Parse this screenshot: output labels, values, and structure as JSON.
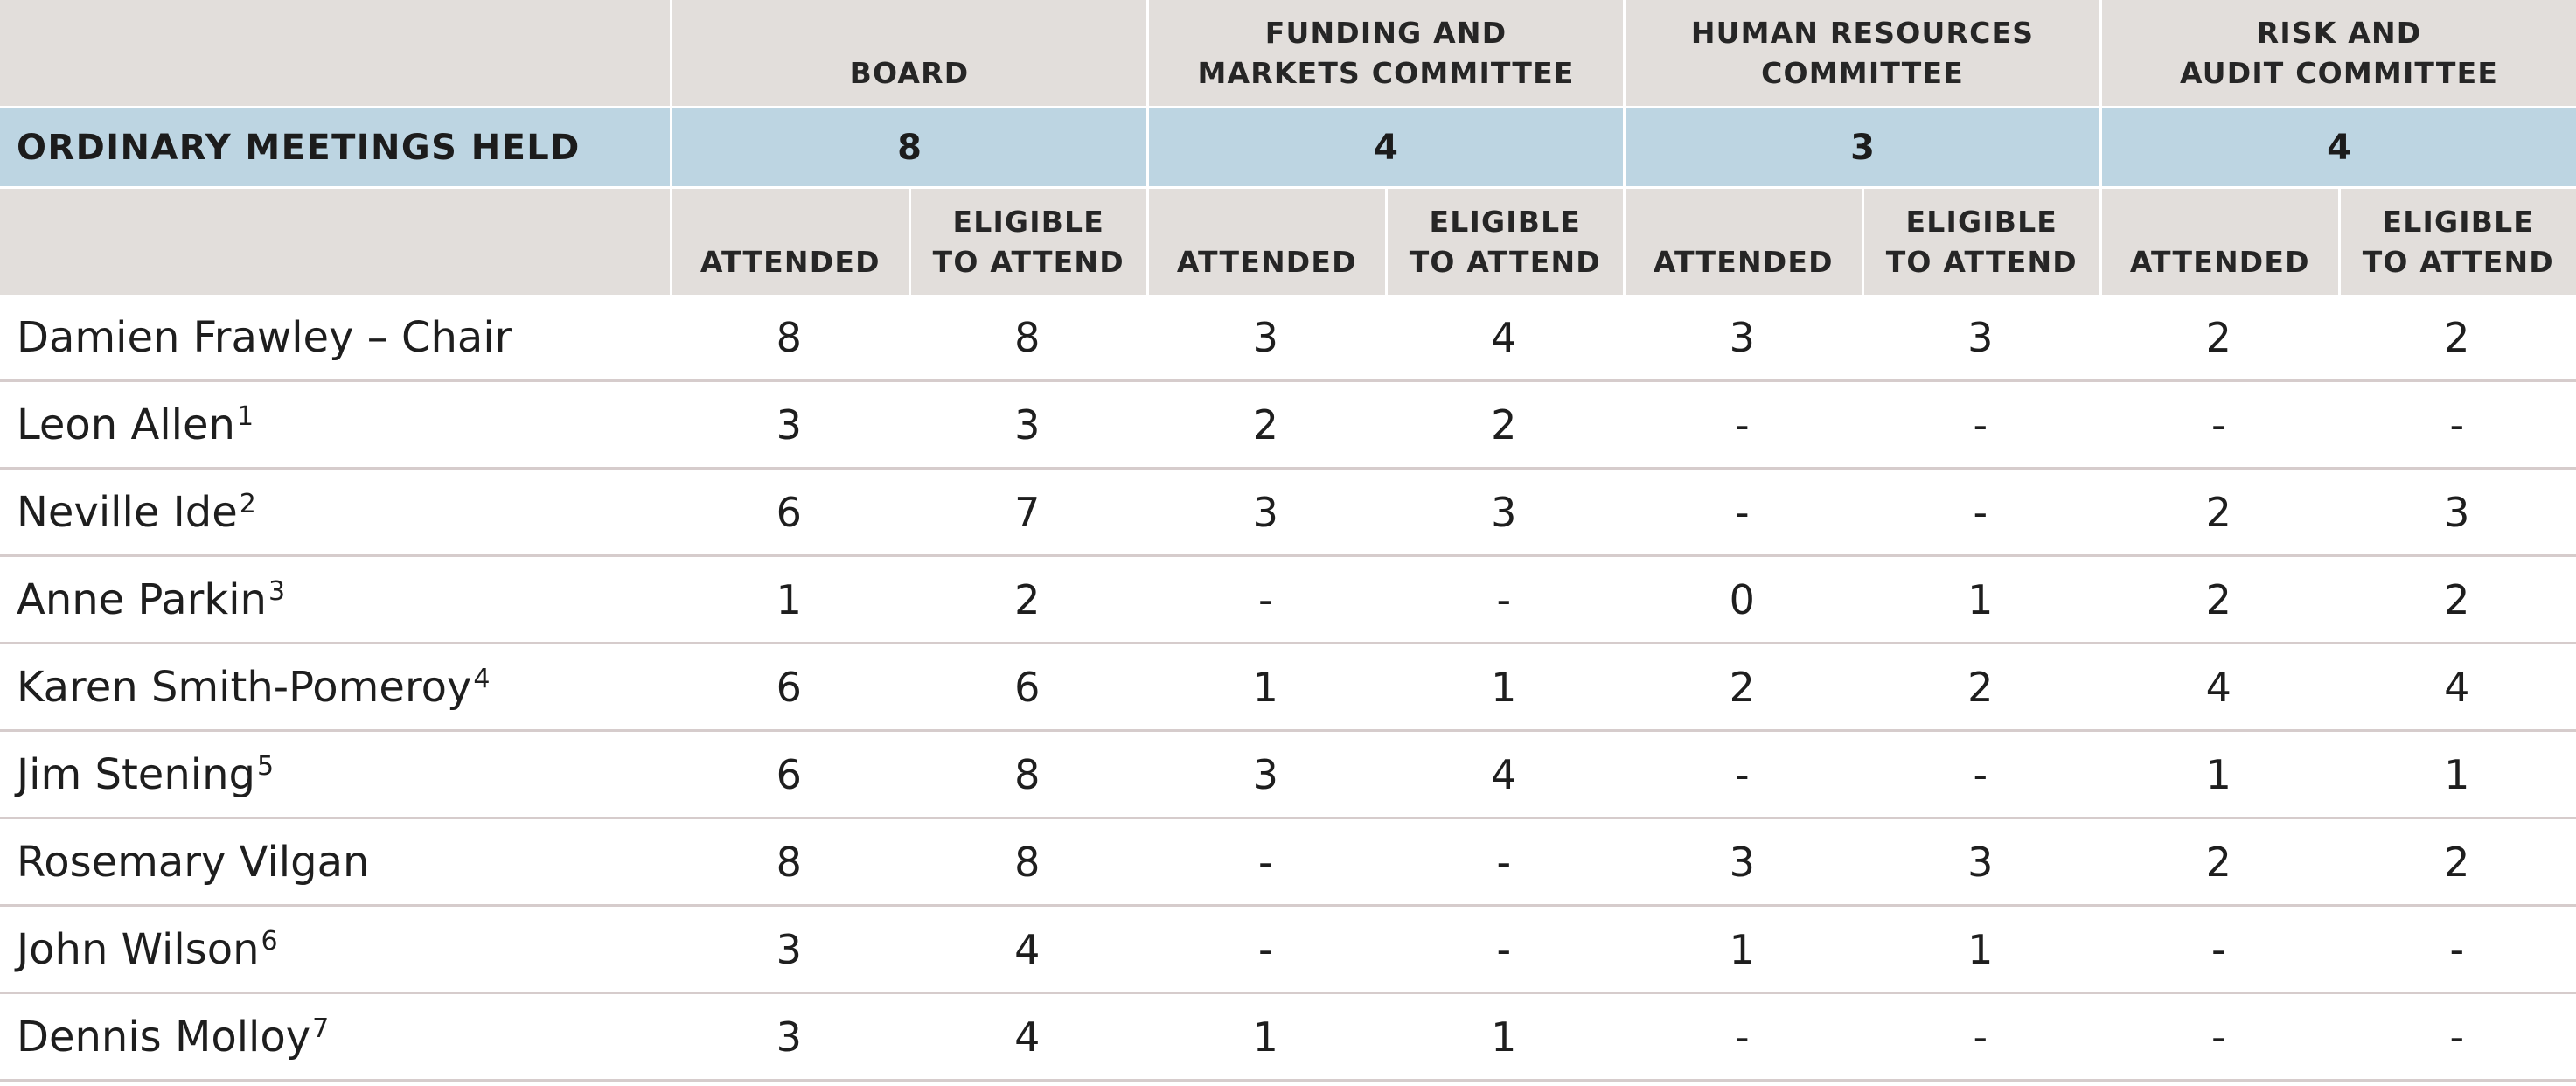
{
  "committees": [
    {
      "lines": [
        "",
        "BOARD"
      ],
      "meetings_held": "8"
    },
    {
      "lines": [
        "FUNDING AND",
        "MARKETS COMMITTEE"
      ],
      "meetings_held": "4"
    },
    {
      "lines": [
        "HUMAN RESOURCES",
        "COMMITTEE"
      ],
      "meetings_held": "3"
    },
    {
      "lines": [
        "RISK AND",
        "AUDIT COMMITTEE"
      ],
      "meetings_held": "4"
    }
  ],
  "meetings_label": "ORDINARY MEETINGS HELD",
  "sub_headers": {
    "attended": "ATTENDED",
    "eligible_line1": "ELIGIBLE",
    "eligible_line2": "TO ATTEND"
  },
  "rows": [
    {
      "name": "Damien Frawley – Chair",
      "footnote": "",
      "values": [
        "8",
        "8",
        "3",
        "4",
        "3",
        "3",
        "2",
        "2"
      ]
    },
    {
      "name": "Leon Allen",
      "footnote": "1",
      "values": [
        "3",
        "3",
        "2",
        "2",
        "-",
        "-",
        "-",
        "-"
      ]
    },
    {
      "name": "Neville Ide",
      "footnote": "2",
      "values": [
        "6",
        "7",
        "3",
        "3",
        "-",
        "-",
        "2",
        "3"
      ]
    },
    {
      "name": "Anne Parkin",
      "footnote": "3",
      "values": [
        "1",
        "2",
        "-",
        "-",
        "0",
        "1",
        "2",
        "2"
      ]
    },
    {
      "name": "Karen Smith-Pomeroy",
      "footnote": "4",
      "values": [
        "6",
        "6",
        "1",
        "1",
        "2",
        "2",
        "4",
        "4"
      ]
    },
    {
      "name": "Jim Stening",
      "footnote": "5",
      "values": [
        "6",
        "8",
        "3",
        "4",
        "-",
        "-",
        "1",
        "1"
      ]
    },
    {
      "name": "Rosemary Vilgan",
      "footnote": "",
      "values": [
        "8",
        "8",
        "-",
        "-",
        "3",
        "3",
        "2",
        "2"
      ]
    },
    {
      "name": "John Wilson",
      "footnote": "6",
      "values": [
        "3",
        "4",
        "-",
        "-",
        "1",
        "1",
        "-",
        "-"
      ]
    },
    {
      "name": "Dennis Molloy",
      "footnote": "7",
      "values": [
        "3",
        "4",
        "1",
        "1",
        "-",
        "-",
        "-",
        "-"
      ]
    }
  ],
  "colors": {
    "header_bg": "#e2dedb",
    "meetings_bg": "#bdd5e2",
    "row_divider": "#d6cccc"
  }
}
